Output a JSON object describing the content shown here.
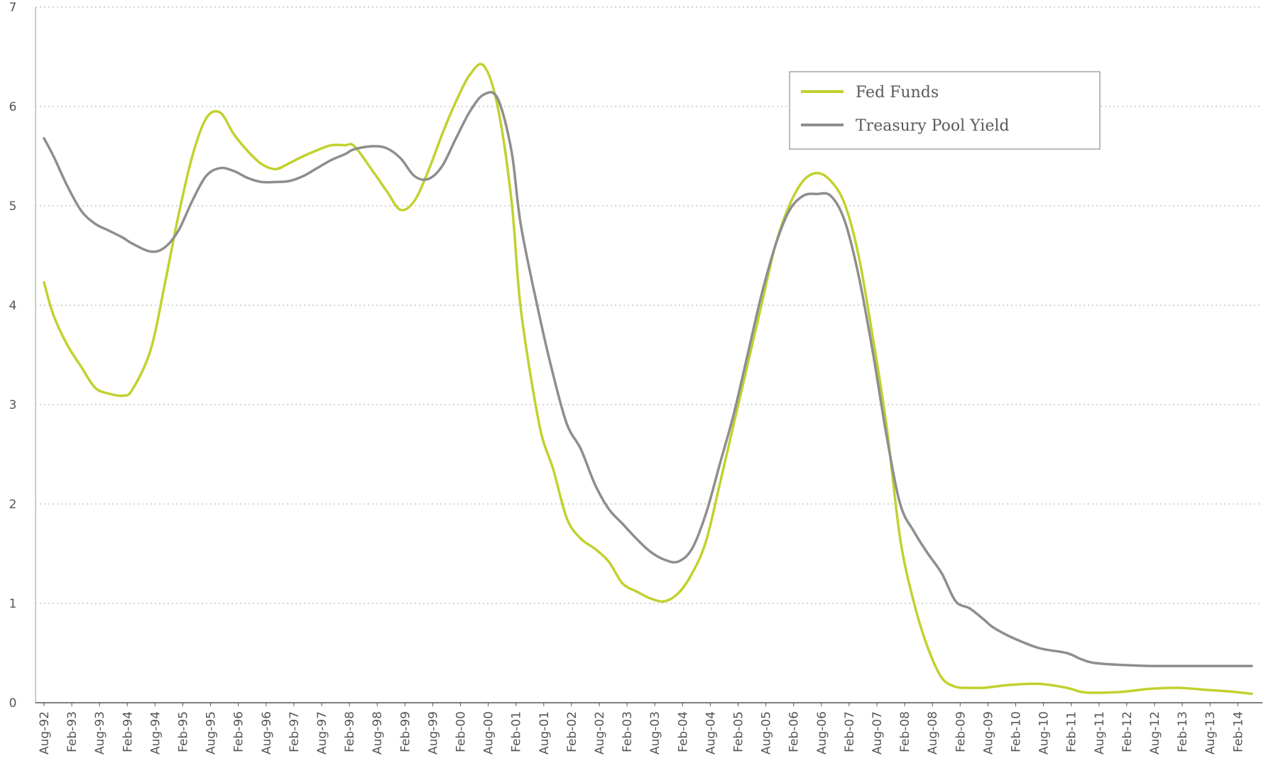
{
  "chart_data": {
    "type": "line",
    "title": "",
    "xlabel": "",
    "ylabel": "",
    "ylim": [
      0,
      7
    ],
    "y_ticks": [
      "0",
      "1",
      "2",
      "3",
      "4",
      "5",
      "6",
      "7"
    ],
    "x_tick_labels": [
      "Aug-92",
      "Feb-93",
      "Aug-93",
      "Feb-94",
      "Aug-94",
      "Feb-95",
      "Aug-95",
      "Feb-96",
      "Aug-96",
      "Feb-97",
      "Aug-97",
      "Feb-98",
      "Aug-98",
      "Feb-99",
      "Aug-99",
      "Feb-00",
      "Aug-00",
      "Feb-01",
      "Aug-01",
      "Feb-02",
      "Aug-02",
      "Feb-03",
      "Aug-03",
      "Feb-04",
      "Aug-04",
      "Feb-05",
      "Aug-05",
      "Feb-06",
      "Aug-06",
      "Feb-07",
      "Aug-07",
      "Feb-08",
      "Aug-08",
      "Feb-09",
      "Aug-09",
      "Feb-10",
      "Aug-10",
      "Feb-11",
      "Aug-11",
      "Feb-12",
      "Aug-12",
      "Feb-13",
      "Aug-13",
      "Feb-14"
    ],
    "grid": "horizontal dotted",
    "legend_position": "top-right",
    "series": [
      {
        "name": "Fed Funds",
        "color": "#c2d12e",
        "x": [
          1992.58,
          1992.75,
          1993.0,
          1993.25,
          1993.5,
          1993.75,
          1994.0,
          1994.17,
          1994.5,
          1994.75,
          1995.0,
          1995.25,
          1995.5,
          1995.75,
          1996.0,
          1996.25,
          1996.5,
          1996.75,
          1997.0,
          1997.25,
          1997.5,
          1997.75,
          1998.0,
          1998.17,
          1998.5,
          1998.75,
          1999.0,
          1999.25,
          1999.5,
          1999.75,
          2000.0,
          2000.25,
          2000.5,
          2000.75,
          2001.0,
          2001.17,
          2001.5,
          2001.75,
          2002.0,
          2002.25,
          2002.5,
          2002.75,
          2003.0,
          2003.25,
          2003.5,
          2003.75,
          2004.0,
          2004.25,
          2004.5,
          2004.75,
          2005.0,
          2005.25,
          2005.5,
          2005.75,
          2006.0,
          2006.25,
          2006.5,
          2006.75,
          2007.0,
          2007.25,
          2007.5,
          2007.75,
          2008.0,
          2008.25,
          2008.5,
          2008.75,
          2009.0,
          2009.25,
          2009.5,
          2009.67,
          2010.0,
          2010.5,
          2011.0,
          2011.25,
          2011.5,
          2012.0,
          2012.5,
          2013.0,
          2013.5,
          2014.0,
          2014.33
        ],
        "values": [
          4.23,
          3.9,
          3.6,
          3.38,
          3.17,
          3.11,
          3.09,
          3.15,
          3.55,
          4.2,
          4.9,
          5.5,
          5.88,
          5.94,
          5.72,
          5.55,
          5.42,
          5.37,
          5.43,
          5.5,
          5.56,
          5.61,
          5.61,
          5.6,
          5.35,
          5.15,
          4.96,
          5.05,
          5.35,
          5.72,
          6.05,
          6.32,
          6.41,
          6.0,
          5.05,
          3.95,
          2.8,
          2.35,
          1.85,
          1.65,
          1.55,
          1.42,
          1.2,
          1.12,
          1.05,
          1.02,
          1.1,
          1.3,
          1.62,
          2.2,
          2.8,
          3.4,
          4.0,
          4.6,
          5.0,
          5.25,
          5.33,
          5.25,
          5.02,
          4.5,
          3.7,
          2.8,
          1.65,
          1.0,
          0.55,
          0.25,
          0.16,
          0.15,
          0.15,
          0.16,
          0.18,
          0.19,
          0.15,
          0.11,
          0.1,
          0.11,
          0.14,
          0.15,
          0.13,
          0.11,
          0.09
        ]
      },
      {
        "name": "Treasury Pool Yield",
        "color": "#8e8e8e",
        "x": [
          1992.58,
          1992.75,
          1993.0,
          1993.25,
          1993.5,
          1993.75,
          1994.0,
          1994.17,
          1994.5,
          1994.75,
          1995.0,
          1995.25,
          1995.5,
          1995.75,
          1996.0,
          1996.25,
          1996.5,
          1996.75,
          1997.0,
          1997.25,
          1997.5,
          1997.75,
          1998.0,
          1998.17,
          1998.5,
          1998.75,
          1999.0,
          1999.25,
          1999.5,
          1999.75,
          2000.0,
          2000.25,
          2000.5,
          2000.75,
          2001.0,
          2001.17,
          2001.5,
          2001.75,
          2002.0,
          2002.25,
          2002.5,
          2002.75,
          2003.0,
          2003.25,
          2003.5,
          2003.75,
          2004.0,
          2004.25,
          2004.5,
          2004.75,
          2005.0,
          2005.25,
          2005.5,
          2005.75,
          2006.0,
          2006.25,
          2006.5,
          2006.75,
          2007.0,
          2007.25,
          2007.5,
          2007.75,
          2008.0,
          2008.25,
          2008.5,
          2008.75,
          2009.0,
          2009.25,
          2009.5,
          2009.67,
          2010.0,
          2010.5,
          2011.0,
          2011.25,
          2011.5,
          2012.0,
          2012.5,
          2013.0,
          2013.5,
          2014.0,
          2014.33
        ],
        "values": [
          5.68,
          5.5,
          5.2,
          4.95,
          4.82,
          4.75,
          4.68,
          4.62,
          4.54,
          4.58,
          4.75,
          5.05,
          5.3,
          5.38,
          5.35,
          5.28,
          5.24,
          5.24,
          5.25,
          5.3,
          5.38,
          5.46,
          5.52,
          5.57,
          5.6,
          5.58,
          5.48,
          5.3,
          5.27,
          5.4,
          5.68,
          5.95,
          6.12,
          6.08,
          5.55,
          4.8,
          3.9,
          3.3,
          2.8,
          2.55,
          2.2,
          1.95,
          1.8,
          1.65,
          1.52,
          1.44,
          1.42,
          1.55,
          1.9,
          2.4,
          2.9,
          3.5,
          4.1,
          4.6,
          4.95,
          5.1,
          5.12,
          5.1,
          4.85,
          4.3,
          3.55,
          2.7,
          2.0,
          1.72,
          1.5,
          1.3,
          1.02,
          0.95,
          0.84,
          0.76,
          0.66,
          0.55,
          0.5,
          0.44,
          0.4,
          0.38,
          0.37,
          0.37,
          0.37,
          0.37,
          0.37
        ]
      }
    ]
  }
}
